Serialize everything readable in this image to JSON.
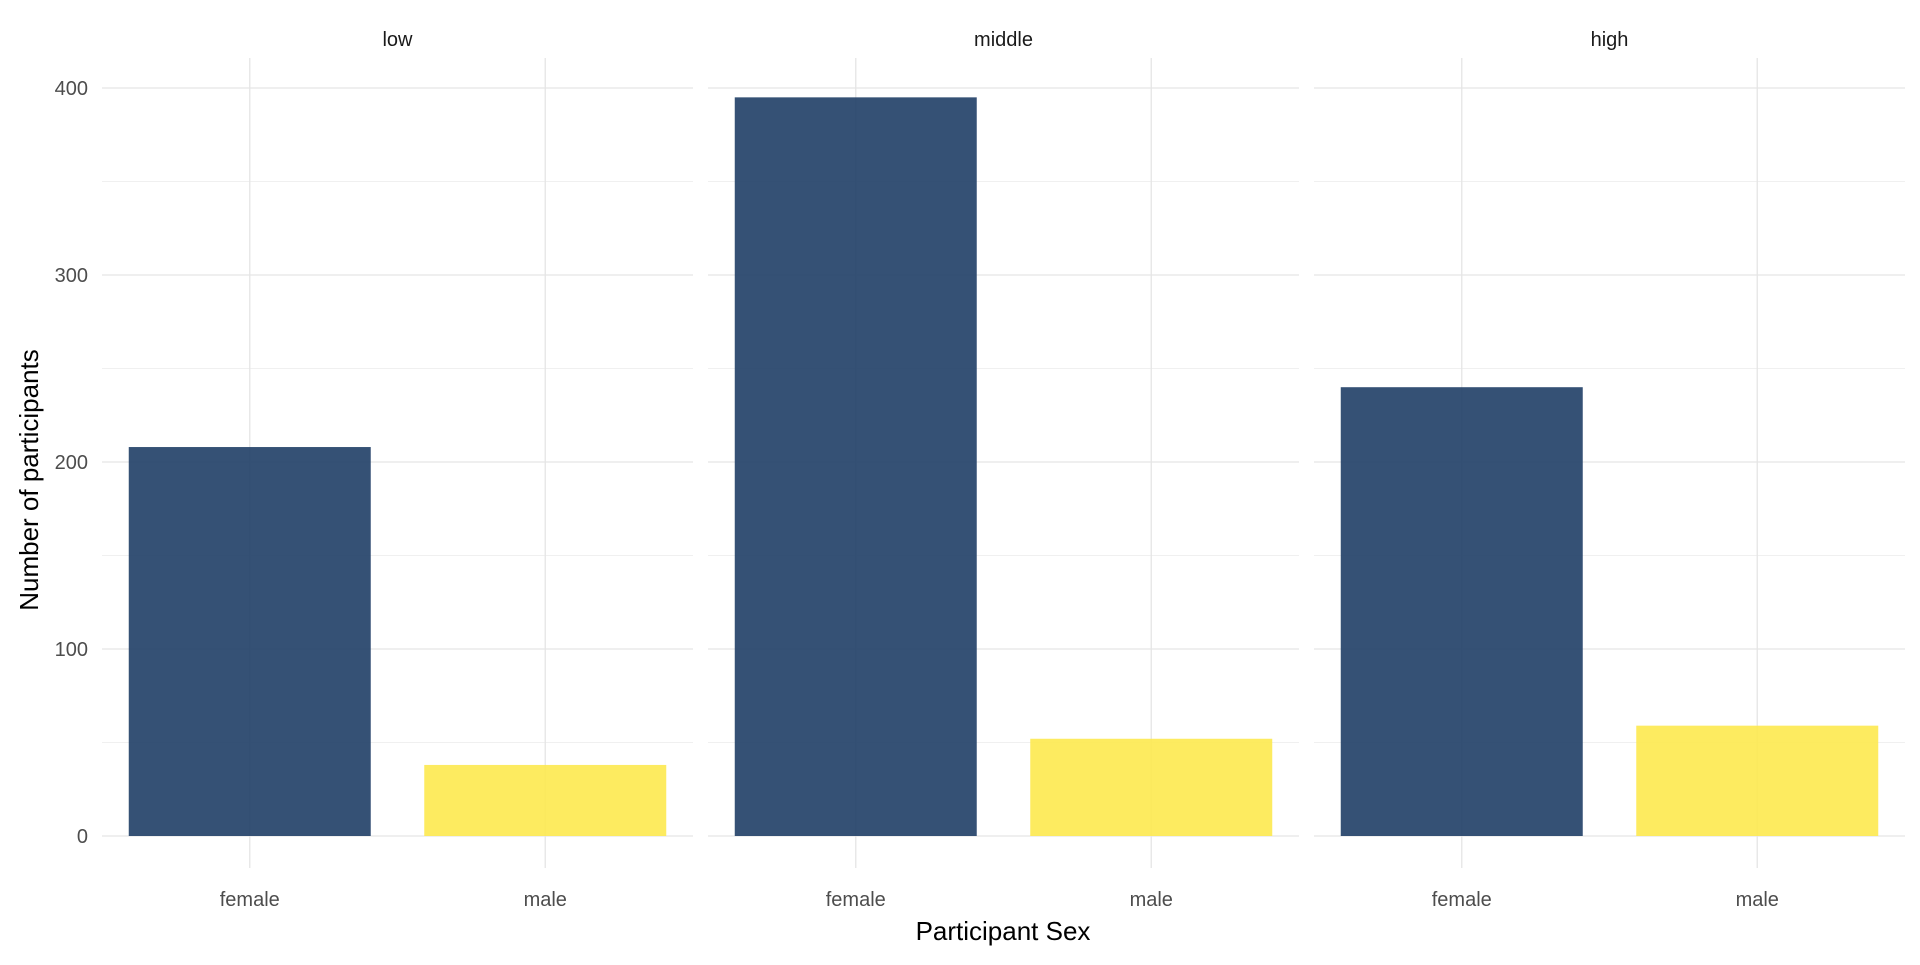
{
  "chart_data": {
    "type": "bar",
    "facets": [
      "low",
      "middle",
      "high"
    ],
    "categories": [
      "female",
      "male"
    ],
    "values": {
      "low": [
        208,
        38
      ],
      "middle": [
        395,
        52
      ],
      "high": [
        240,
        59
      ]
    },
    "xlabel": "Participant Sex",
    "ylabel": "Number of participants",
    "ylim": [
      0,
      400
    ],
    "yticks": [
      0,
      100,
      200,
      300,
      400
    ],
    "y_tick_labels": [
      "0",
      "100",
      "200",
      "300",
      "400"
    ],
    "grid": true,
    "legend": "none",
    "colors": {
      "female": "#1f3e66",
      "male": "#fde94f"
    }
  }
}
